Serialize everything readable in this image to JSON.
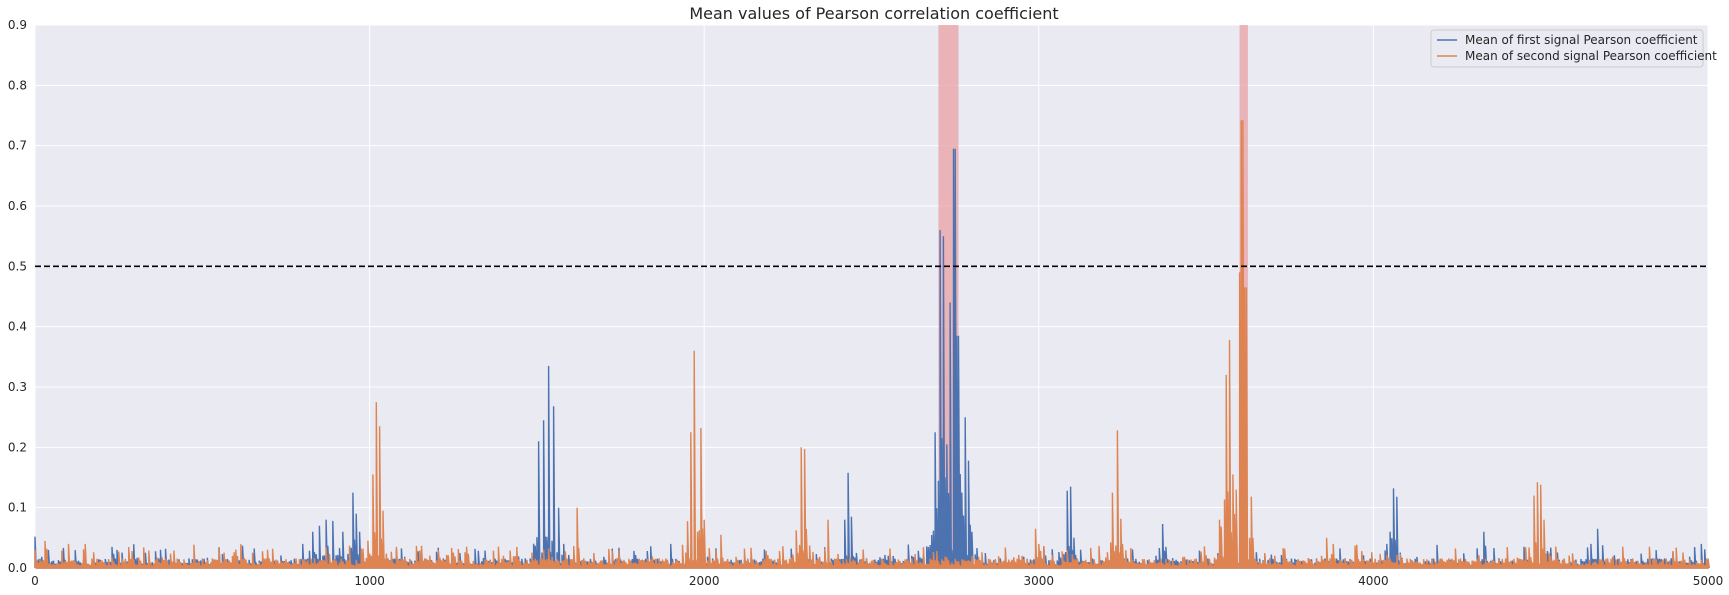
{
  "chart_data": {
    "type": "line",
    "title": "Mean values of Pearson correlation coefficient",
    "xlabel": "",
    "ylabel": "",
    "xlim": [
      0,
      5000
    ],
    "ylim": [
      0,
      0.9
    ],
    "xticks": [
      0,
      1000,
      2000,
      3000,
      4000,
      5000
    ],
    "yticks": [
      0.0,
      0.1,
      0.2,
      0.3,
      0.4,
      0.5,
      0.6,
      0.7,
      0.8,
      0.9
    ],
    "xtick_labels": [
      "0",
      "1000",
      "2000",
      "3000",
      "4000",
      "5000"
    ],
    "ytick_labels": [
      "0.0",
      "0.1",
      "0.2",
      "0.3",
      "0.4",
      "0.5",
      "0.6",
      "0.7",
      "0.8",
      "0.9"
    ],
    "grid": true,
    "legend_position": "top-right",
    "threshold": 0.5,
    "highlight_spans": [
      [
        2700,
        2760
      ],
      [
        3600,
        3625
      ]
    ],
    "colors": {
      "background": "#EAEAF2",
      "grid": "#FFFFFF",
      "first": "#4C72B0",
      "second": "#DD8452",
      "threshold": "#000000",
      "highlight": "#E8A0A4"
    },
    "series": [
      {
        "name": "Mean of first signal Pearson coefficient",
        "peaks": [
          [
            0,
            0.052
          ],
          [
            40,
            0.03
          ],
          [
            230,
            0.035
          ],
          [
            245,
            0.03
          ],
          [
            800,
            0.04
          ],
          [
            830,
            0.06
          ],
          [
            850,
            0.07
          ],
          [
            870,
            0.08
          ],
          [
            890,
            0.078
          ],
          [
            920,
            0.06
          ],
          [
            950,
            0.125
          ],
          [
            960,
            0.09
          ],
          [
            970,
            0.06
          ],
          [
            1505,
            0.21
          ],
          [
            1520,
            0.245
          ],
          [
            1535,
            0.335
          ],
          [
            1550,
            0.268
          ],
          [
            1565,
            0.1
          ],
          [
            1580,
            0.04
          ],
          [
            1900,
            0.04
          ],
          [
            2420,
            0.08
          ],
          [
            2430,
            0.158
          ],
          [
            2440,
            0.085
          ],
          [
            2690,
            0.225
          ],
          [
            2705,
            0.56
          ],
          [
            2715,
            0.55
          ],
          [
            2725,
            0.205
          ],
          [
            2735,
            0.44
          ],
          [
            2748,
            0.695
          ],
          [
            2758,
            0.385
          ],
          [
            2770,
            0.125
          ],
          [
            2780,
            0.25
          ],
          [
            2790,
            0.178
          ],
          [
            2800,
            0.06
          ],
          [
            3085,
            0.128
          ],
          [
            3095,
            0.135
          ],
          [
            3105,
            0.05
          ],
          [
            3370,
            0.073
          ],
          [
            3380,
            0.035
          ],
          [
            4050,
            0.06
          ],
          [
            4060,
            0.132
          ],
          [
            4070,
            0.118
          ],
          [
            4040,
            0.04
          ],
          [
            4330,
            0.06
          ],
          [
            4650,
            0.04
          ],
          [
            4670,
            0.065
          ],
          [
            4980,
            0.04
          ]
        ]
      },
      {
        "name": "Mean of second signal Pearson coefficient",
        "peaks": [
          [
            30,
            0.045
          ],
          [
            100,
            0.04
          ],
          [
            150,
            0.04
          ],
          [
            1010,
            0.155
          ],
          [
            1020,
            0.275
          ],
          [
            1030,
            0.235
          ],
          [
            1040,
            0.095
          ],
          [
            1080,
            0.035
          ],
          [
            1440,
            0.035
          ],
          [
            1620,
            0.1
          ],
          [
            1960,
            0.225
          ],
          [
            1970,
            0.36
          ],
          [
            1980,
            0.06
          ],
          [
            1990,
            0.232
          ],
          [
            2000,
            0.08
          ],
          [
            2050,
            0.055
          ],
          [
            2290,
            0.2
          ],
          [
            2300,
            0.197
          ],
          [
            2370,
            0.08
          ],
          [
            2990,
            0.065
          ],
          [
            3000,
            0.04
          ],
          [
            3220,
            0.125
          ],
          [
            3235,
            0.228
          ],
          [
            3250,
            0.04
          ],
          [
            3540,
            0.08
          ],
          [
            3560,
            0.32
          ],
          [
            3570,
            0.378
          ],
          [
            3580,
            0.155
          ],
          [
            3590,
            0.13
          ],
          [
            3600,
            0.49
          ],
          [
            3608,
            0.742
          ],
          [
            3618,
            0.465
          ],
          [
            3630,
            0.05
          ],
          [
            3640,
            0.05
          ],
          [
            3860,
            0.05
          ],
          [
            3880,
            0.04
          ],
          [
            4480,
            0.12
          ],
          [
            4490,
            0.142
          ],
          [
            4500,
            0.138
          ],
          [
            4510,
            0.08
          ]
        ]
      }
    ]
  }
}
